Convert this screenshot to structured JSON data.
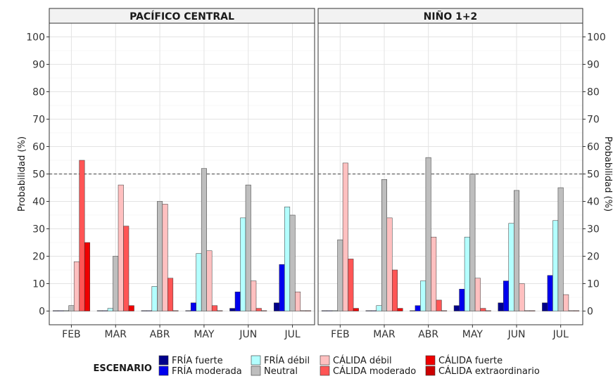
{
  "chart_data": {
    "type": "bar",
    "panels": [
      "PACÍFICO CENTRAL",
      "NIÑO 1+2"
    ],
    "categories": [
      "FEB",
      "MAR",
      "ABR",
      "MAY",
      "JUN",
      "JUL"
    ],
    "ylabel": "Probabilidad (%)",
    "ylim": [
      -5,
      105
    ],
    "yticks": [
      0,
      10,
      20,
      30,
      40,
      50,
      60,
      70,
      80,
      90,
      100
    ],
    "reference_line": 50,
    "legend": {
      "title": "ESCENARIO",
      "position": "bottom",
      "entries": [
        {
          "label": "FRÍA fuerte",
          "color": "#00008b"
        },
        {
          "label": "FRÍA moderada",
          "color": "#0000ee"
        },
        {
          "label": "FRÍA débil",
          "color": "#b3ffff"
        },
        {
          "label": "Neutral",
          "color": "#bebebe"
        },
        {
          "label": "CÁLIDA débil",
          "color": "#ffc0c0"
        },
        {
          "label": "CÁLIDA moderado",
          "color": "#ff5555"
        },
        {
          "label": "CÁLIDA fuerte",
          "color": "#ee0000"
        },
        {
          "label": "CÁLIDA extraordinario",
          "color": "#cc0000"
        }
      ]
    },
    "series": [
      {
        "name": "FRÍA fuerte",
        "color": "#00008b",
        "values": {
          "PACÍFICO CENTRAL": [
            0,
            0,
            0,
            0,
            1,
            3
          ],
          "NIÑO 1+2": [
            0,
            0,
            0,
            2,
            3,
            3
          ]
        }
      },
      {
        "name": "FRÍA moderada",
        "color": "#0000ee",
        "values": {
          "PACÍFICO CENTRAL": [
            0,
            0,
            0,
            3,
            7,
            17
          ],
          "NIÑO 1+2": [
            0,
            0,
            2,
            8,
            11,
            13
          ]
        }
      },
      {
        "name": "FRÍA débil",
        "color": "#b3ffff",
        "values": {
          "PACÍFICO CENTRAL": [
            0,
            1,
            9,
            21,
            34,
            38
          ],
          "NIÑO 1+2": [
            0,
            2,
            11,
            27,
            32,
            33
          ]
        }
      },
      {
        "name": "Neutral",
        "color": "#bebebe",
        "values": {
          "PACÍFICO CENTRAL": [
            2,
            20,
            40,
            52,
            46,
            35
          ],
          "NIÑO 1+2": [
            26,
            48,
            56,
            50,
            44,
            45
          ]
        }
      },
      {
        "name": "CÁLIDA débil",
        "color": "#ffc0c0",
        "values": {
          "PACÍFICO CENTRAL": [
            18,
            46,
            39,
            22,
            11,
            7
          ],
          "NIÑO 1+2": [
            54,
            34,
            27,
            12,
            10,
            6
          ]
        }
      },
      {
        "name": "CÁLIDA moderado",
        "color": "#ff5555",
        "values": {
          "PACÍFICO CENTRAL": [
            55,
            31,
            12,
            2,
            1,
            0
          ],
          "NIÑO 1+2": [
            19,
            15,
            4,
            1,
            0,
            0
          ]
        }
      },
      {
        "name": "CÁLIDA fuerte",
        "color": "#ee0000",
        "values": {
          "PACÍFICO CENTRAL": [
            25,
            2,
            0,
            0,
            0,
            0
          ],
          "NIÑO 1+2": [
            1,
            1,
            0,
            0,
            0,
            0
          ]
        }
      }
    ],
    "grid": true
  }
}
